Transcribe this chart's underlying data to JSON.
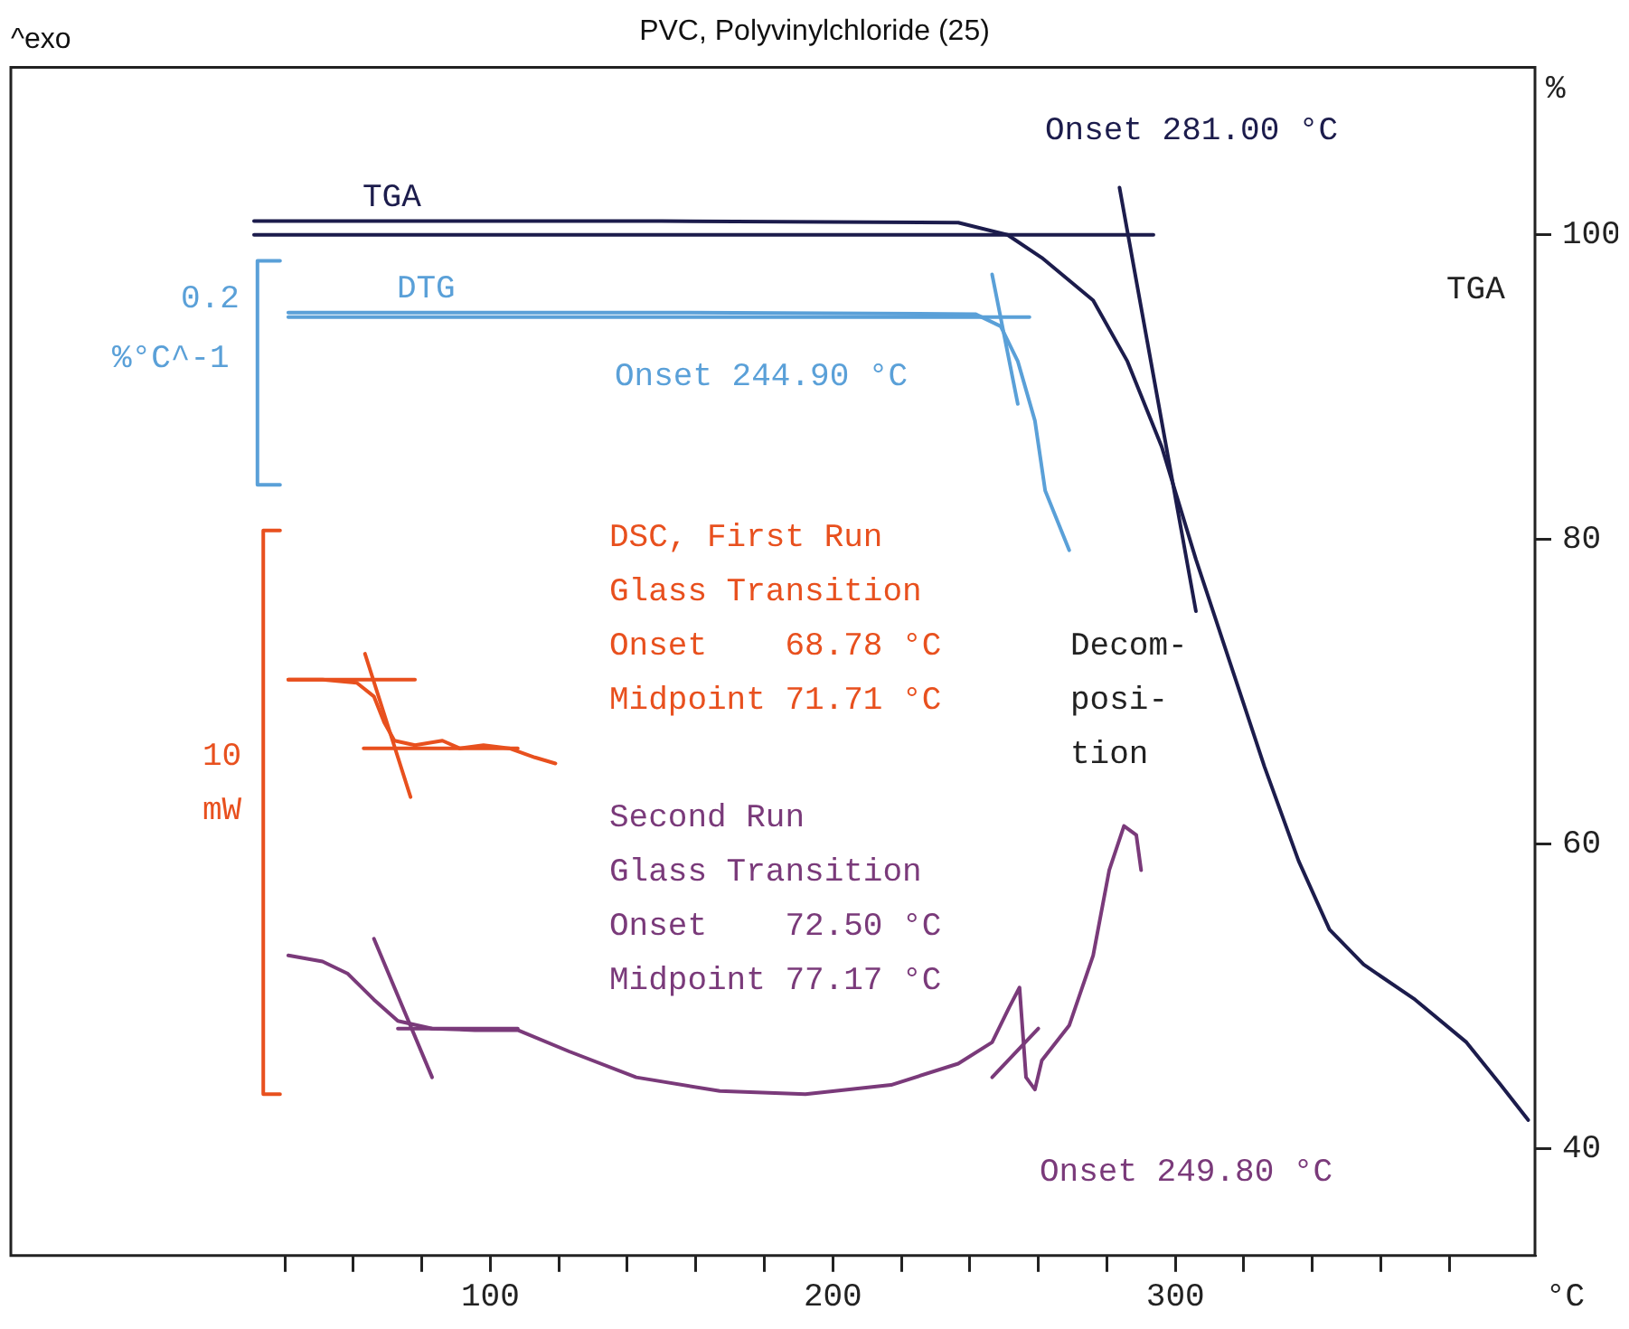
{
  "chart_data": {
    "type": "line",
    "title": "PVC, Polyvinylchloride (25)",
    "xlabel": "°C",
    "ylabel": "%",
    "xlim": [
      -40,
      405
    ],
    "ylim": [
      33,
      111
    ],
    "xticks": [
      {
        "value": 40,
        "label": null
      },
      {
        "value": 60,
        "label": null
      },
      {
        "value": 80,
        "label": null
      },
      100,
      {
        "value": 120,
        "label": null
      },
      {
        "value": 140,
        "label": null
      },
      {
        "value": 160,
        "label": null
      },
      {
        "value": 180,
        "label": null
      },
      200,
      {
        "value": 220,
        "label": null
      },
      {
        "value": 240,
        "label": null
      },
      {
        "value": 260,
        "label": null
      },
      {
        "value": 280,
        "label": null
      },
      300,
      {
        "value": 320,
        "label": null
      },
      {
        "value": 340,
        "label": null
      },
      {
        "value": 360,
        "label": null
      },
      {
        "value": 380,
        "label": null
      }
    ],
    "yticks": [
      40,
      60,
      80,
      100
    ],
    "grid": false,
    "series": [
      {
        "name": "TGA",
        "color": "#1c1c4c",
        "x": [
          31,
          150,
          236.6,
          251,
          261,
          276,
          286,
          296,
          306,
          316,
          326,
          336,
          345,
          355,
          370,
          385,
          395,
          403
        ],
        "values": [
          100.9,
          100.9,
          100.8,
          100,
          98.5,
          95.7,
          91.7,
          86.1,
          78.7,
          71.9,
          65.1,
          58.9,
          54.4,
          52.1,
          49.8,
          47,
          44.2,
          41.9
        ]
      },
      {
        "color": "#1c1c4c",
        "x": [
          31,
          293.6
        ],
        "values": [
          100,
          100
        ]
      },
      {
        "color": "#1c1c4c",
        "x": [
          283.7,
          306
        ],
        "values": [
          103.1,
          75.3
        ]
      },
      {
        "name": "DTG",
        "color": "#5aa0d8",
        "x": [
          41,
          150,
          241.6,
          249,
          254,
          259,
          262,
          269
        ],
        "values": [
          94.9,
          94.9,
          94.8,
          94,
          91.7,
          87.8,
          83.2,
          79.3
        ]
      },
      {
        "color": "#5aa0d8",
        "x": [
          41,
          257.4
        ],
        "values": [
          94.6,
          94.6
        ]
      },
      {
        "color": "#5aa0d8",
        "x": [
          246.5,
          254
        ],
        "values": [
          97.4,
          88.9
        ]
      },
      {
        "color": "#e8501e",
        "x": [
          41,
          51,
          61,
          66,
          69,
          72,
          78,
          86,
          91,
          98,
          105.5,
          113,
          119
        ],
        "values": [
          70.8,
          70.8,
          70.6,
          69.7,
          68,
          66.8,
          66.5,
          66.8,
          66.3,
          66.5,
          66.3,
          65.7,
          65.3
        ]
      },
      {
        "color": "#e8501e",
        "x": [
          41,
          78
        ],
        "values": [
          70.8,
          70.8
        ]
      },
      {
        "color": "#e8501e",
        "x": [
          63,
          108
        ],
        "values": [
          66.3,
          66.3
        ]
      },
      {
        "color": "#e8501e",
        "x": [
          63.4,
          76.7
        ],
        "values": [
          72.5,
          63.1
        ]
      },
      {
        "color": "#7a3a7a",
        "x": [
          41,
          51,
          58.4,
          66,
          73,
          83,
          95.5,
          108,
          123,
          142.6,
          167,
          192,
          217,
          236.6,
          246.5,
          251.5,
          254.5,
          256.4,
          259,
          261,
          269,
          276,
          280.7,
          285,
          288.6,
          290
        ],
        "values": [
          52.7,
          52.3,
          51.5,
          49.8,
          48.4,
          47.9,
          47.8,
          47.8,
          46.4,
          44.7,
          43.8,
          43.6,
          44.2,
          45.6,
          47,
          49.3,
          50.6,
          44.7,
          43.9,
          45.8,
          48.1,
          52.7,
          58.3,
          61.2,
          60.6,
          58.3
        ]
      },
      {
        "color": "#7a3a7a",
        "x": [
          66,
          83
        ],
        "values": [
          53.8,
          44.7
        ]
      },
      {
        "color": "#7a3a7a",
        "x": [
          73,
          108
        ],
        "values": [
          47.9,
          47.9
        ]
      },
      {
        "color": "#7a3a7a",
        "x": [
          246.5,
          260
        ],
        "values": [
          44.7,
          47.9
        ]
      },
      {
        "color": "#5aa0d8",
        "x": [
          38.6,
          32,
          32,
          38.6
        ],
        "values": [
          98.3,
          98.3,
          83.6,
          83.6
        ]
      },
      {
        "color": "#e8501e",
        "x": [
          38.6,
          33.7,
          33.7,
          38.6
        ],
        "values": [
          80.6,
          80.6,
          43.6,
          43.6
        ]
      }
    ],
    "annotations": [
      "^exo",
      "Onset 281.00 °C",
      "Onset 244.90 °C",
      "DSC, First Run\nGlass Transition\nOnset    68.78 °C\nMidpoint 71.71 °C",
      "Second Run\nGlass Transition\nOnset    72.50 °C\nMidpoint 77.17 °C",
      "Decom-\nposi-\ntion",
      "Onset 249.80 °C",
      "0.2",
      "%°C^-1",
      "10\nmW",
      "TGA"
    ]
  }
}
